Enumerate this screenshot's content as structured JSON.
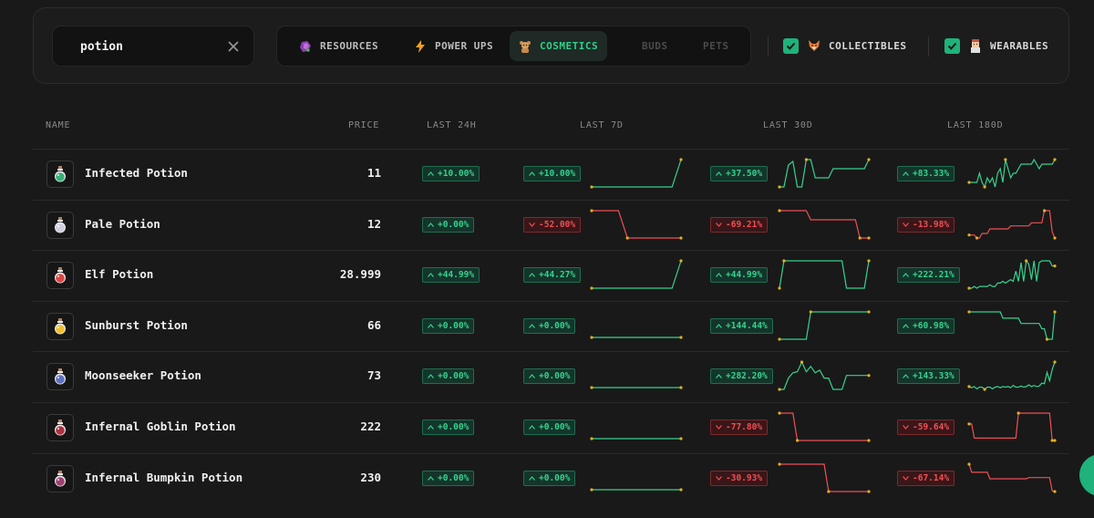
{
  "search": {
    "value": "potion"
  },
  "tabs": [
    {
      "label": "RESOURCES",
      "icon": "resource-gem-icon",
      "state": "normal"
    },
    {
      "label": "POWER UPS",
      "icon": "lightning-icon",
      "state": "normal"
    },
    {
      "label": "COSMETICS",
      "icon": "teddy-bear-icon",
      "state": "active"
    },
    {
      "label": "BUDS",
      "icon": "",
      "state": "disabled"
    },
    {
      "label": "PETS",
      "icon": "",
      "state": "disabled"
    }
  ],
  "toggles": [
    {
      "label": "COLLECTIBLES",
      "checked": true,
      "icon": "fox-icon"
    },
    {
      "label": "WEARABLES",
      "checked": true,
      "icon": "character-icon"
    }
  ],
  "columns": {
    "name": "NAME",
    "price": "PRICE",
    "last24h": "LAST 24H",
    "last7d": "LAST 7D",
    "last30d": "LAST 30D",
    "last180d": "LAST 180D"
  },
  "colors": {
    "accent": "#2fd08a",
    "up": "#36d28f",
    "down": "#ef4f55",
    "background": "#191919"
  },
  "items": [
    {
      "name": "Infected Potion",
      "price": "11",
      "icon_color": "#3ab07a",
      "d24": {
        "text": "+10.00%",
        "dir": "up"
      },
      "d7": {
        "text": "+10.00%",
        "dir": "up",
        "series": [
          10,
          10,
          10,
          10,
          10,
          10,
          10,
          10,
          10,
          10,
          11
        ]
      },
      "d30": {
        "text": "+37.50%",
        "dir": "up",
        "series": [
          8,
          8,
          10.4,
          10.8,
          8,
          8,
          11,
          11,
          9,
          9,
          9,
          9,
          10,
          10,
          10,
          10,
          10,
          10,
          10,
          10,
          11
        ]
      },
      "d180": {
        "text": "+83.33%",
        "dir": "up",
        "series": [
          6,
          6,
          6,
          6,
          8,
          6,
          5,
          7,
          6,
          7,
          5,
          8,
          9,
          6,
          11,
          9,
          7,
          8,
          8,
          9,
          10,
          10,
          10,
          10,
          10,
          11,
          10,
          9,
          10,
          10,
          10,
          10,
          10,
          11
        ]
      }
    },
    {
      "name": "Pale Potion",
      "price": "12",
      "icon_color": "#d0d0e0",
      "d24": {
        "text": "+0.00%",
        "dir": "up"
      },
      "d7": {
        "text": "-52.00%",
        "dir": "down",
        "series": [
          25,
          25,
          25,
          25,
          12,
          12,
          12,
          12,
          12,
          12,
          12
        ]
      },
      "d30": {
        "text": "-69.21%",
        "dir": "down",
        "series": [
          39,
          39,
          39,
          39,
          39,
          39,
          39,
          30,
          30,
          30,
          30,
          30,
          30,
          30,
          30,
          30,
          30,
          30,
          12,
          12,
          12
        ]
      },
      "d180": {
        "text": "-13.98%",
        "dir": "down",
        "series": [
          14,
          14,
          14,
          12,
          12,
          15,
          15,
          15,
          18,
          18,
          18,
          18,
          18,
          18,
          18,
          18,
          20,
          20,
          20,
          20,
          20,
          20,
          20,
          20,
          22,
          22,
          22,
          22,
          22,
          30,
          30,
          30,
          16,
          12
        ]
      }
    },
    {
      "name": "Elf Potion",
      "price": "28.999",
      "icon_color": "#e04444",
      "d24": {
        "text": "+44.99%",
        "dir": "up"
      },
      "d7": {
        "text": "+44.27%",
        "dir": "up",
        "series": [
          20,
          20,
          20,
          20,
          20,
          20,
          20,
          20,
          20,
          20,
          29
        ]
      },
      "d30": {
        "text": "+44.99%",
        "dir": "up",
        "series": [
          20,
          29,
          29,
          29,
          29,
          29,
          29,
          29,
          29,
          29,
          29,
          29,
          29,
          29,
          29,
          20,
          20,
          20,
          20,
          20,
          29
        ]
      },
      "d180": {
        "text": "+222.21%",
        "dir": "up",
        "series": [
          9,
          9,
          10,
          9,
          10,
          10,
          10,
          10,
          11,
          10,
          10,
          12,
          12,
          13,
          12,
          13,
          14,
          13,
          19,
          13,
          24,
          13,
          25,
          23,
          14,
          25,
          13,
          24,
          25,
          25,
          25,
          25,
          22,
          22
        ]
      }
    },
    {
      "name": "Sunburst Potion",
      "price": "66",
      "icon_color": "#f0c030",
      "d24": {
        "text": "+0.00%",
        "dir": "up"
      },
      "d7": {
        "text": "+0.00%",
        "dir": "up",
        "series": [
          66,
          66,
          66,
          66,
          66,
          66,
          66,
          66,
          66,
          66,
          66
        ]
      },
      "d30": {
        "text": "+144.44%",
        "dir": "up",
        "series": [
          27,
          27,
          27,
          27,
          27,
          27,
          27,
          66,
          66,
          66,
          66,
          66,
          66,
          66,
          66,
          66,
          66,
          66,
          66,
          66,
          66
        ]
      },
      "d180": {
        "text": "+60.98%",
        "dir": "up",
        "series": [
          66,
          66,
          66,
          66,
          66,
          66,
          66,
          66,
          66,
          66,
          66,
          66,
          66,
          60,
          60,
          60,
          60,
          60,
          60,
          60,
          55,
          55,
          55,
          55,
          55,
          55,
          55,
          55,
          50,
          50,
          40,
          40,
          40,
          66
        ]
      }
    },
    {
      "name": "Moonseeker Potion",
      "price": "73",
      "icon_color": "#6070c0",
      "d24": {
        "text": "+0.00%",
        "dir": "up"
      },
      "d7": {
        "text": "+0.00%",
        "dir": "up",
        "series": [
          73,
          73,
          73,
          73,
          73,
          73,
          73,
          73,
          73,
          73,
          73
        ]
      },
      "d30": {
        "text": "+282.20%",
        "dir": "up",
        "series": [
          19,
          19,
          40,
          50,
          52,
          70,
          52,
          62,
          50,
          55,
          40,
          40,
          19,
          19,
          19,
          45,
          45,
          45,
          45,
          45,
          45
        ]
      },
      "d180": {
        "text": "+143.33%",
        "dir": "up",
        "series": [
          30,
          28,
          30,
          26,
          29,
          29,
          25,
          29,
          29,
          26,
          29,
          30,
          28,
          30,
          29,
          30,
          28,
          32,
          29,
          29,
          31,
          29,
          30,
          33,
          30,
          32,
          30,
          31,
          36,
          35,
          55,
          40,
          60,
          73
        ]
      }
    },
    {
      "name": "Infernal Goblin Potion",
      "price": "222",
      "icon_color": "#b03040",
      "d24": {
        "text": "+0.00%",
        "dir": "up"
      },
      "d7": {
        "text": "+0.00%",
        "dir": "up",
        "series": [
          222,
          222,
          222,
          222,
          222,
          222,
          222,
          222,
          222,
          222,
          222
        ]
      },
      "d30": {
        "text": "-77.80%",
        "dir": "down",
        "series": [
          1000,
          1000,
          1000,
          1000,
          222,
          222,
          222,
          222,
          222,
          222,
          222,
          222,
          222,
          222,
          222,
          222,
          222,
          222,
          222,
          222,
          222
        ]
      },
      "d180": {
        "text": "-59.64%",
        "dir": "down",
        "series": [
          420,
          420,
          250,
          250,
          250,
          250,
          250,
          250,
          250,
          250,
          250,
          250,
          250,
          250,
          250,
          250,
          250,
          250,
          250,
          550,
          550,
          550,
          550,
          550,
          550,
          550,
          550,
          550,
          550,
          550,
          550,
          550,
          222,
          222
        ]
      }
    },
    {
      "name": "Infernal Bumpkin Potion",
      "price": "230",
      "icon_color": "#a04070",
      "d24": {
        "text": "+0.00%",
        "dir": "up"
      },
      "d7": {
        "text": "+0.00%",
        "dir": "up",
        "series": [
          230,
          230,
          230,
          230,
          230,
          230,
          230,
          230,
          230,
          230,
          230
        ]
      },
      "d30": {
        "text": "-30.93%",
        "dir": "down",
        "series": [
          333,
          333,
          333,
          333,
          333,
          333,
          333,
          333,
          333,
          333,
          333,
          230,
          230,
          230,
          230,
          230,
          230,
          230,
          230,
          230,
          230
        ]
      },
      "d180": {
        "text": "-67.14%",
        "dir": "down",
        "series": [
          700,
          560,
          560,
          560,
          560,
          560,
          560,
          560,
          450,
          450,
          450,
          450,
          450,
          450,
          450,
          450,
          450,
          450,
          450,
          450,
          450,
          450,
          450,
          470,
          470,
          470,
          470,
          470,
          470,
          470,
          470,
          470,
          240,
          230
        ]
      }
    }
  ]
}
